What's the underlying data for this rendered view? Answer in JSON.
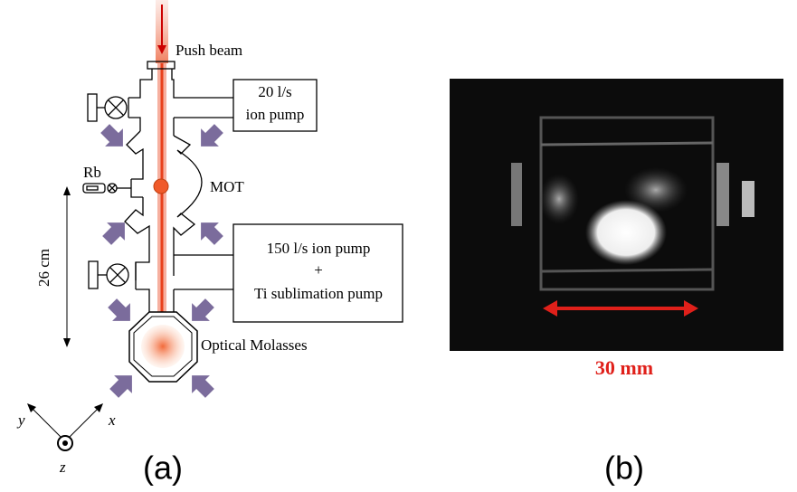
{
  "panel_a": {
    "push_beam": "Push beam",
    "pump_1": [
      "20 l/s",
      "ion pump"
    ],
    "rb": "Rb",
    "mot": "MOT",
    "height": "26 cm",
    "pump_2": [
      "150 l/s ion pump",
      "+",
      "Ti sublimation pump"
    ],
    "molasses": "Optical Molasses",
    "axes": {
      "y": "y",
      "x": "x",
      "z": "z"
    },
    "caption": "(a)"
  },
  "panel_b": {
    "scale": "30 mm",
    "caption": "(b)"
  }
}
